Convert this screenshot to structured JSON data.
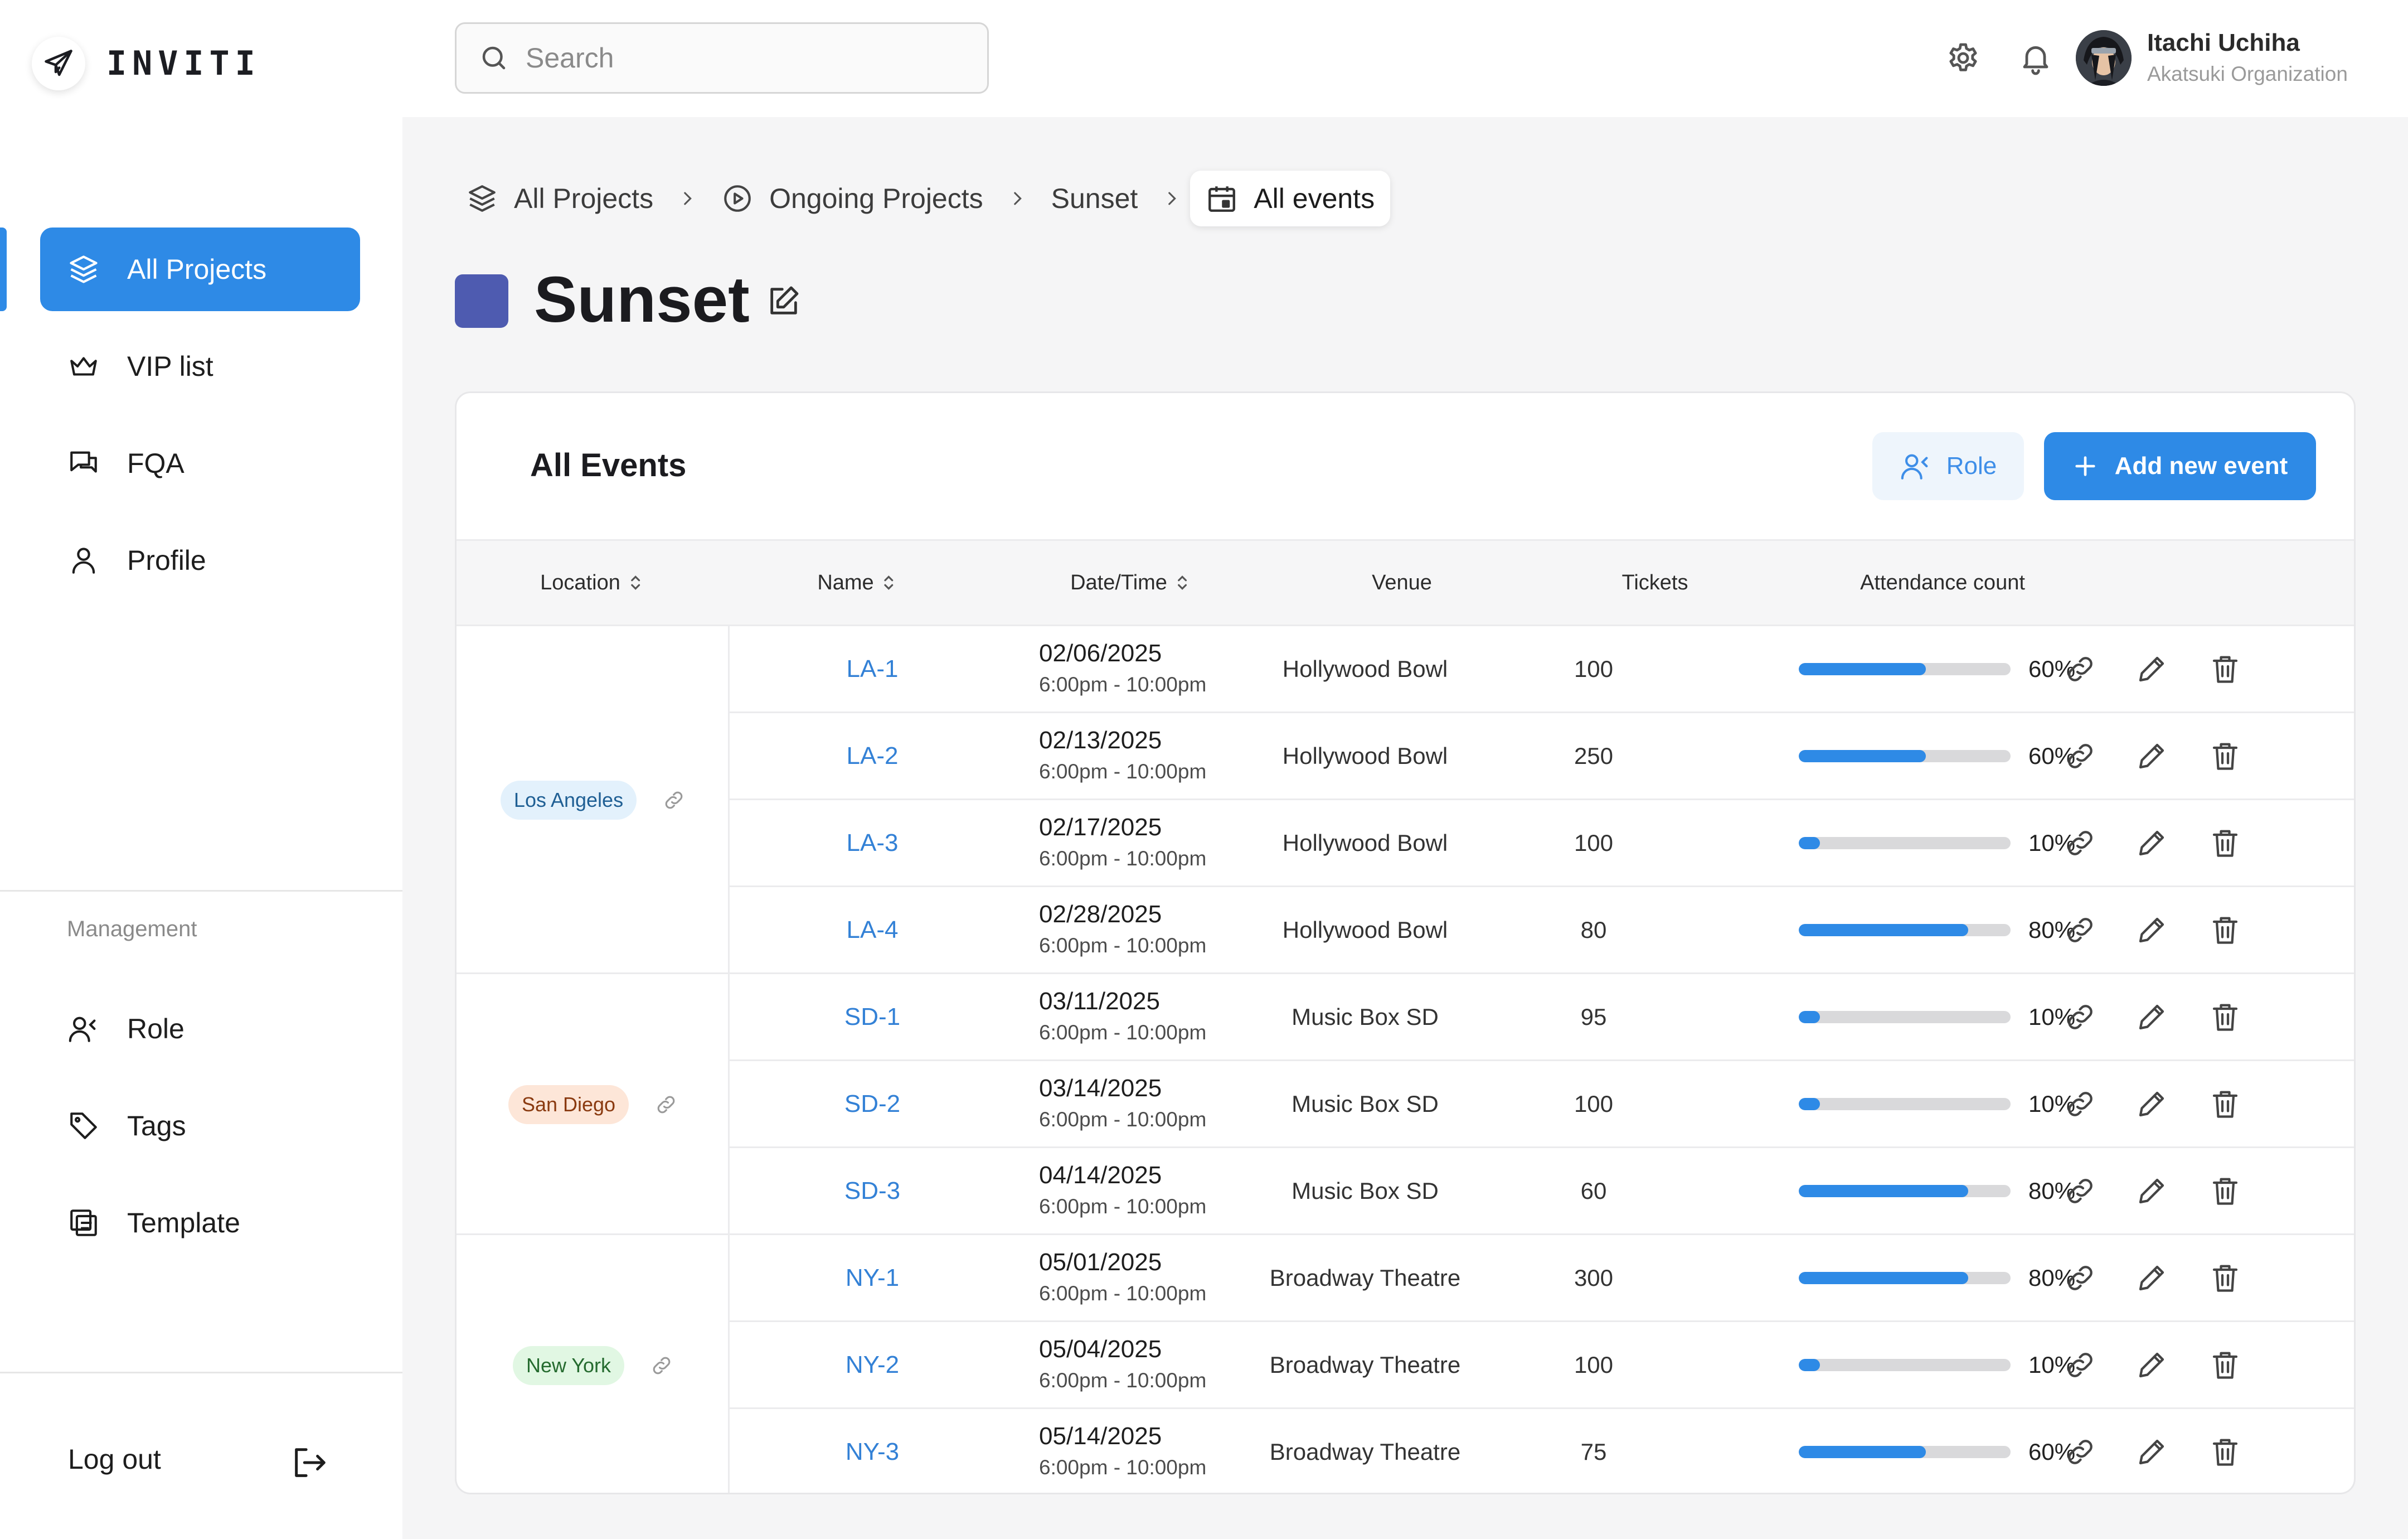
{
  "app": {
    "logo_text": "INVITI"
  },
  "search": {
    "placeholder": "Search"
  },
  "user": {
    "name": "Itachi Uchiha",
    "org": "Akatsuki Organization"
  },
  "sidebar": {
    "items": [
      {
        "label": "All Projects",
        "icon": "layers-icon",
        "active": true
      },
      {
        "label": "VIP list",
        "icon": "crown-icon"
      },
      {
        "label": "FQA",
        "icon": "chat-icon"
      },
      {
        "label": "Profile",
        "icon": "user-icon"
      }
    ],
    "management_label": "Management",
    "management_items": [
      {
        "label": "Role",
        "icon": "role-icon"
      },
      {
        "label": "Tags",
        "icon": "tag-icon"
      },
      {
        "label": "Template",
        "icon": "template-icon"
      }
    ],
    "logout_label": "Log out"
  },
  "breadcrumb": {
    "items": [
      {
        "label": "All Projects",
        "icon": "layers-icon"
      },
      {
        "label": "Ongoing Projects",
        "icon": "play-circle-icon"
      },
      {
        "label": "Sunset"
      },
      {
        "label": "All events",
        "icon": "calendar-icon"
      }
    ]
  },
  "project": {
    "title": "Sunset",
    "color": "#4e5bb0"
  },
  "events": {
    "title": "All Events",
    "role_button": "Role",
    "add_button": "Add new event",
    "columns": [
      "Location",
      "Name",
      "Date/Time",
      "Venue",
      "Tickets",
      "Attendance count"
    ],
    "groups": [
      {
        "location": "Los Angeles",
        "badge_color": "blue",
        "rows": [
          {
            "name": "LA-1",
            "date": "02/06/2025",
            "time": "6:00pm - 10:00pm",
            "venue": "Hollywood Bowl",
            "tickets": "100",
            "attendance": 60,
            "attendance_label": "60%"
          },
          {
            "name": "LA-2",
            "date": "02/13/2025",
            "time": "6:00pm - 10:00pm",
            "venue": "Hollywood Bowl",
            "tickets": "250",
            "attendance": 60,
            "attendance_label": "60%"
          },
          {
            "name": "LA-3",
            "date": "02/17/2025",
            "time": "6:00pm - 10:00pm",
            "venue": "Hollywood Bowl",
            "tickets": "100",
            "attendance": 10,
            "attendance_label": "10%"
          },
          {
            "name": "LA-4",
            "date": "02/28/2025",
            "time": "6:00pm - 10:00pm",
            "venue": "Hollywood Bowl",
            "tickets": "80",
            "attendance": 80,
            "attendance_label": "80%"
          }
        ]
      },
      {
        "location": "San Diego",
        "badge_color": "orange",
        "rows": [
          {
            "name": "SD-1",
            "date": "03/11/2025",
            "time": "6:00pm - 10:00pm",
            "venue": "Music Box SD",
            "tickets": "95",
            "attendance": 10,
            "attendance_label": "10%"
          },
          {
            "name": "SD-2",
            "date": "03/14/2025",
            "time": "6:00pm - 10:00pm",
            "venue": "Music Box SD",
            "tickets": "100",
            "attendance": 10,
            "attendance_label": "10%"
          },
          {
            "name": "SD-3",
            "date": "04/14/2025",
            "time": "6:00pm - 10:00pm",
            "venue": "Music Box SD",
            "tickets": "60",
            "attendance": 80,
            "attendance_label": "80%"
          }
        ]
      },
      {
        "location": "New York",
        "badge_color": "green",
        "rows": [
          {
            "name": "NY-1",
            "date": "05/01/2025",
            "time": "6:00pm - 10:00pm",
            "venue": "Broadway Theatre",
            "tickets": "300",
            "attendance": 80,
            "attendance_label": "80%"
          },
          {
            "name": "NY-2",
            "date": "05/04/2025",
            "time": "6:00pm - 10:00pm",
            "venue": "Broadway Theatre",
            "tickets": "100",
            "attendance": 10,
            "attendance_label": "10%"
          },
          {
            "name": "NY-3",
            "date": "05/14/2025",
            "time": "6:00pm - 10:00pm",
            "venue": "Broadway Theatre",
            "tickets": "75",
            "attendance": 60,
            "attendance_label": "60%"
          }
        ]
      }
    ]
  }
}
